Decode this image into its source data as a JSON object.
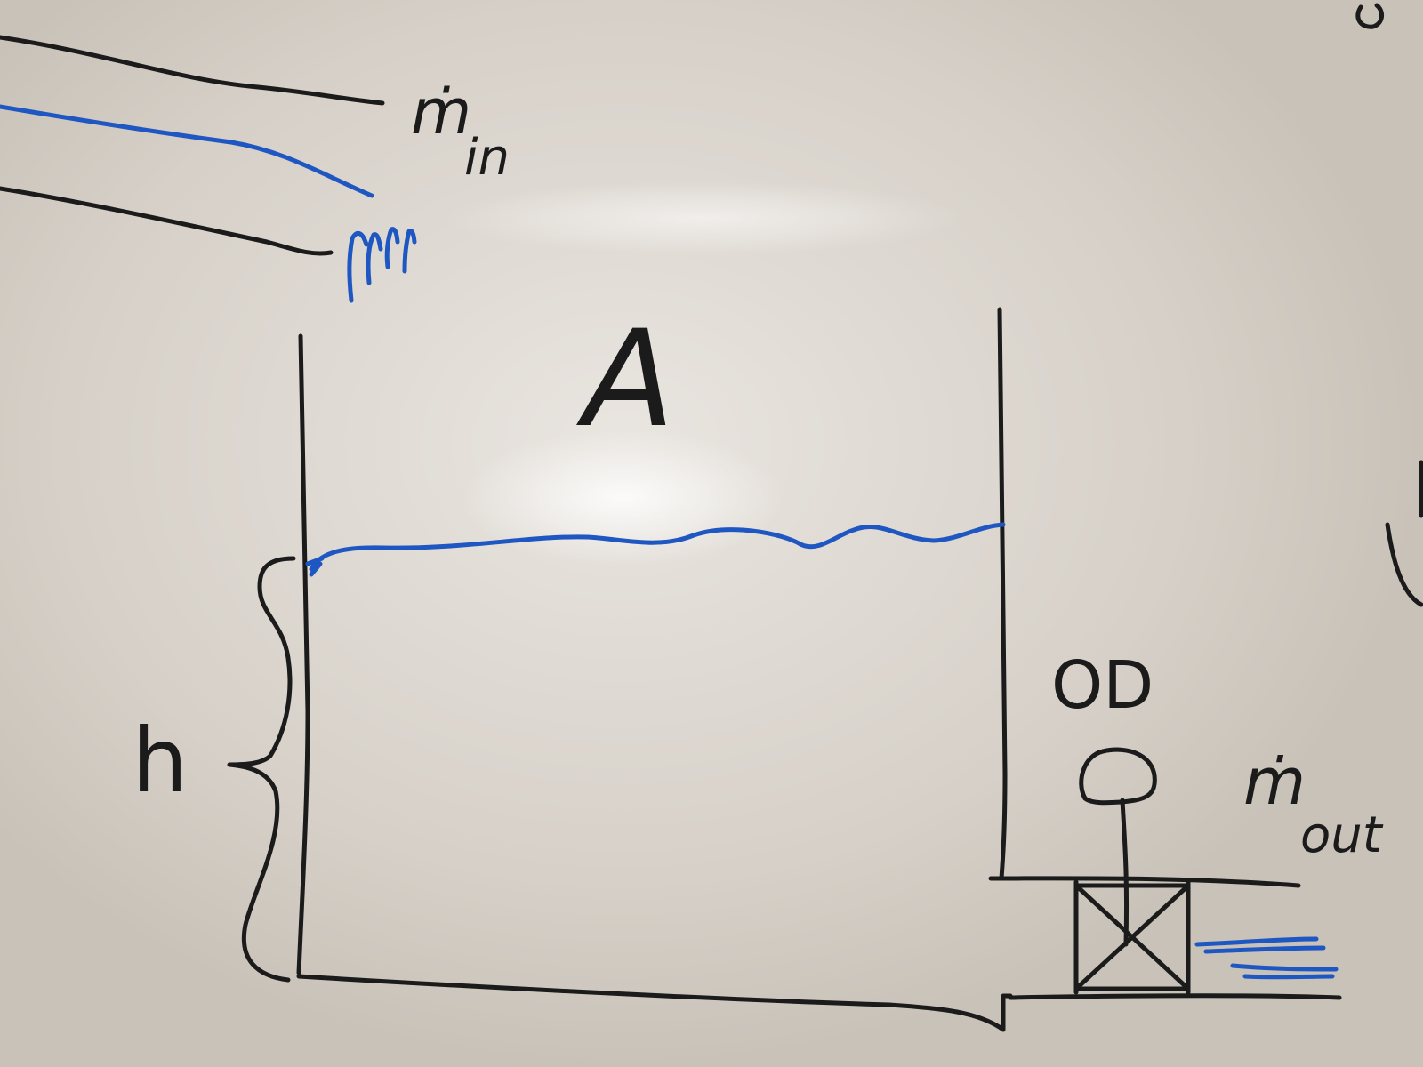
{
  "diagram": {
    "labels": {
      "inflow": "ṁ",
      "inflow_sub": "in",
      "area": "A",
      "height": "h",
      "valve": "OD",
      "outflow": "ṁ",
      "outflow_sub": "out"
    },
    "ink_colors": {
      "black_marker": "#1b1b1b",
      "blue_marker": "#1f57c2"
    }
  }
}
